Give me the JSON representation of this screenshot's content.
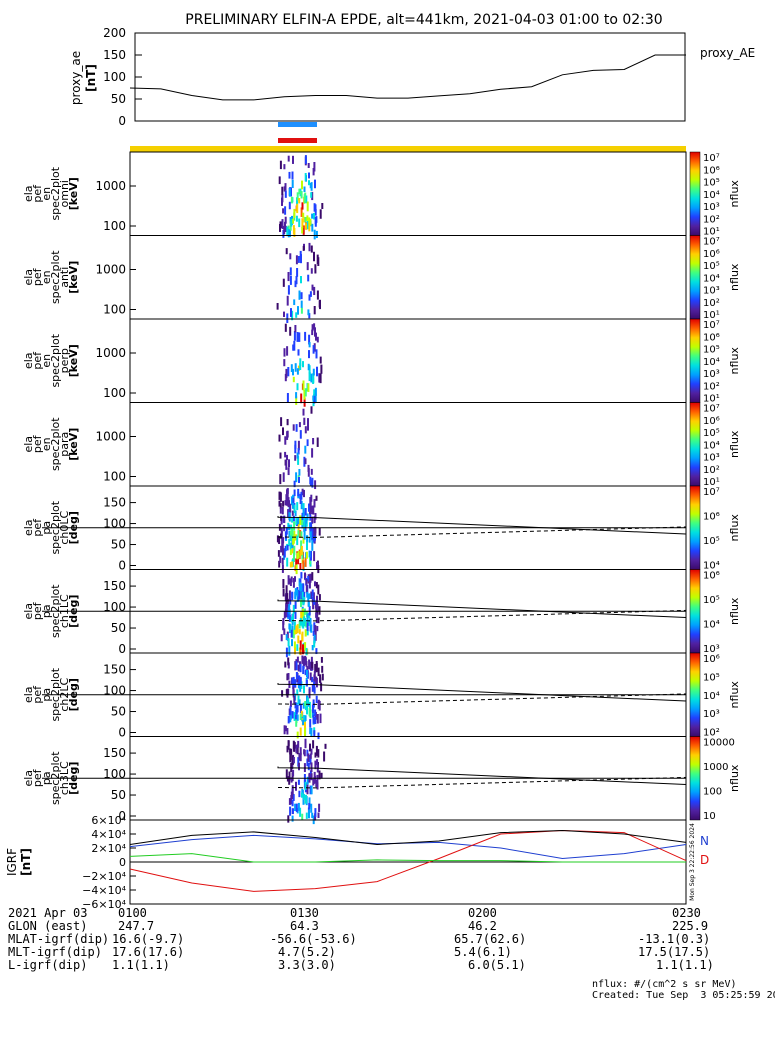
{
  "title": "PRELIMINARY ELFIN-A EPDE, alt=441km, 2021-04-03 01:00 to 02:30",
  "ae_panel": {
    "ylabel": "proxy_ae",
    "yunit": "[nT]",
    "legend": "proxy_AE",
    "ylim": [
      0,
      200
    ],
    "ticks": [
      "200",
      "150",
      "100",
      "50",
      "0"
    ]
  },
  "energy_panels": [
    {
      "label": [
        "ela",
        "pef",
        "en",
        "spec2plot",
        "omni",
        "[keV]"
      ],
      "ticks": [
        "1000",
        "100"
      ]
    },
    {
      "label": [
        "ela",
        "pef",
        "en",
        "spec2plot",
        "anti",
        "[keV]"
      ],
      "ticks": [
        "1000",
        "100"
      ]
    },
    {
      "label": [
        "ela",
        "pef",
        "en",
        "spec2plot",
        "perp",
        "[keV]"
      ],
      "ticks": [
        "1000",
        "100"
      ]
    },
    {
      "label": [
        "ela",
        "pef",
        "en",
        "spec2plot",
        "para",
        "[keV]"
      ],
      "ticks": [
        "1000",
        "100"
      ]
    }
  ],
  "pa_panels": [
    {
      "label": [
        "ela",
        "pef",
        "pa",
        "spec2plot",
        "ch0LC",
        "[deg]"
      ],
      "ticks": [
        "150",
        "100",
        "50",
        "0"
      ]
    },
    {
      "label": [
        "ela",
        "pef",
        "pa",
        "spec2plot",
        "ch1LC",
        "[deg]"
      ],
      "ticks": [
        "150",
        "100",
        "50",
        "0"
      ]
    },
    {
      "label": [
        "ela",
        "pef",
        "pa",
        "spec2plot",
        "ch2LC",
        "[deg]"
      ],
      "ticks": [
        "150",
        "100",
        "50",
        "0"
      ]
    },
    {
      "label": [
        "ela",
        "pef",
        "pa",
        "spec2plot",
        "ch3LC",
        "[deg]"
      ],
      "ticks": [
        "150",
        "100",
        "50",
        "0"
      ]
    }
  ],
  "colorbars": {
    "unit": "nflux",
    "energy_ticks": [
      "10⁷",
      "10⁶",
      "10⁵",
      "10⁴",
      "10³",
      "10²",
      "10¹"
    ],
    "ch0_ticks": [
      "10⁷",
      "10⁶",
      "10⁵",
      "10⁴"
    ],
    "ch1_ticks": [
      "10⁶",
      "10⁵",
      "10⁴",
      "10³"
    ],
    "ch2_ticks": [
      "10⁶",
      "10⁵",
      "10⁴",
      "10³",
      "10²"
    ],
    "ch3_ticks": [
      "10000",
      "1000",
      "100",
      "10"
    ]
  },
  "b_panel": {
    "ylabel": "IGRF",
    "yunit": "[nT]",
    "ticks": [
      "6×10⁴",
      "4×10⁴",
      "2×10⁴",
      "0",
      "−2×10⁴",
      "−4×10⁴",
      "−6×10⁴"
    ],
    "legend": [
      {
        "label": "N",
        "color": "#1f3fd0"
      },
      {
        "label": "D",
        "color": "#e01010"
      }
    ],
    "side_text": "Mon Sep  3 22:22:56 2024"
  },
  "footer": {
    "rows": [
      {
        "label": "2021 Apr 03",
        "values": [
          "0100",
          "0130",
          "0200",
          "0230"
        ]
      },
      {
        "label": "GLON (east)",
        "values": [
          "247.7",
          "64.3",
          "46.2",
          "225.9"
        ]
      },
      {
        "label": "MLAT-igrf(dip)",
        "values": [
          "16.6(-9.7)",
          "-56.6(-53.6)",
          "65.7(62.6)",
          "-13.1(0.3)"
        ]
      },
      {
        "label": "MLT-igrf(dip)",
        "values": [
          "17.6(17.6)",
          "4.7(5.2)",
          "5.4(6.1)",
          "17.5(17.5)"
        ]
      },
      {
        "label": "L-igrf(dip)",
        "values": [
          "1.1(1.1)",
          "3.3(3.0)",
          "6.0(5.1)",
          "1.1(1.1)"
        ]
      }
    ],
    "note1": "nflux: #/(cm^2 s sr MeV)",
    "note2": "Created: Tue Sep  3 05:25:59 2024"
  },
  "colors": {
    "ae_line": "#000000",
    "bar_blue": "#1e90ff",
    "bar_red": "#e01010",
    "bar_yellow": "#f5d000",
    "b_black": "#000000",
    "b_green": "#22cc22",
    "b_blue": "#1f3fd0",
    "b_red": "#e01010"
  },
  "chart_data": [
    {
      "type": "line",
      "x": [
        "01:00",
        "01:05",
        "01:10",
        "01:15",
        "01:20",
        "01:25",
        "01:30",
        "01:35",
        "01:40",
        "01:45",
        "01:50",
        "01:55",
        "02:00",
        "02:05",
        "02:10",
        "02:15",
        "02:20",
        "02:25",
        "02:30"
      ],
      "series": [
        {
          "name": "proxy_AE",
          "values": [
            75,
            73,
            58,
            48,
            48,
            55,
            58,
            58,
            52,
            52,
            57,
            62,
            72,
            78,
            105,
            115,
            117,
            150,
            150
          ]
        }
      ],
      "ylim": [
        0,
        200
      ]
    },
    {
      "type": "heatmap",
      "x_range": [
        "01:00",
        "02:30"
      ],
      "active_interval": [
        "01:20",
        "01:34"
      ],
      "energy_range_keV": [
        60,
        7000
      ],
      "colorbar_range": [
        10,
        10000000
      ]
    },
    {
      "type": "line",
      "x": [
        "01:00",
        "01:10",
        "01:20",
        "01:30",
        "01:40",
        "01:50",
        "02:00",
        "02:10",
        "02:20",
        "02:30"
      ],
      "series": [
        {
          "name": "N",
          "values": [
            22000,
            32000,
            38000,
            33000,
            26000,
            28000,
            20000,
            5000,
            12000,
            25000
          ]
        },
        {
          "name": "D",
          "values": [
            -10000,
            -30000,
            -42000,
            -38000,
            -28000,
            5000,
            40000,
            45000,
            42000,
            2000
          ]
        },
        {
          "values": [
            25000,
            38000,
            43000,
            35000,
            25000,
            30000,
            42000,
            45000,
            40000,
            28000
          ]
        },
        {
          "values": [
            8000,
            12000,
            0,
            0,
            3000,
            2000,
            2000,
            0,
            0,
            0
          ]
        }
      ],
      "ylim": [
        -60000,
        60000
      ]
    }
  ]
}
